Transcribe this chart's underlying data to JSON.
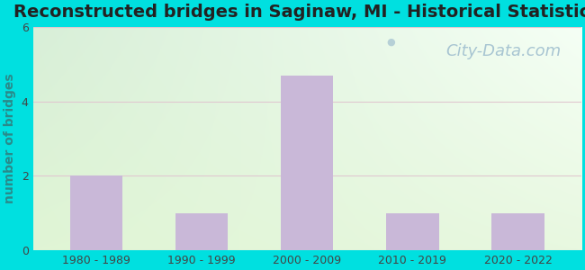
{
  "title": "Reconstructed bridges in Saginaw, MI - Historical Statistics",
  "categories": [
    "1980 - 1989",
    "1990 - 1999",
    "2000 - 2009",
    "2010 - 2019",
    "2020 - 2022"
  ],
  "values": [
    2,
    1,
    4.7,
    1,
    1
  ],
  "bar_color": "#c9b8d8",
  "ylabel": "number of bridges",
  "ylim": [
    0,
    6
  ],
  "yticks": [
    0,
    2,
    4,
    6
  ],
  "background_outer": "#00e0e0",
  "background_plot_topleft": "#d8efd8",
  "background_plot_topright": "#f0f8f0",
  "background_plot_bottom": "#e8f8e0",
  "title_fontsize": 14,
  "title_color": "#222222",
  "ylabel_fontsize": 10,
  "ylabel_color": "#2a8a8a",
  "tick_fontsize": 9,
  "tick_color": "#444444",
  "grid_color": "#e0c8d0",
  "watermark_text": "City-Data.com",
  "watermark_color": "#a0bfcf",
  "watermark_fontsize": 13,
  "bar_width": 0.5
}
